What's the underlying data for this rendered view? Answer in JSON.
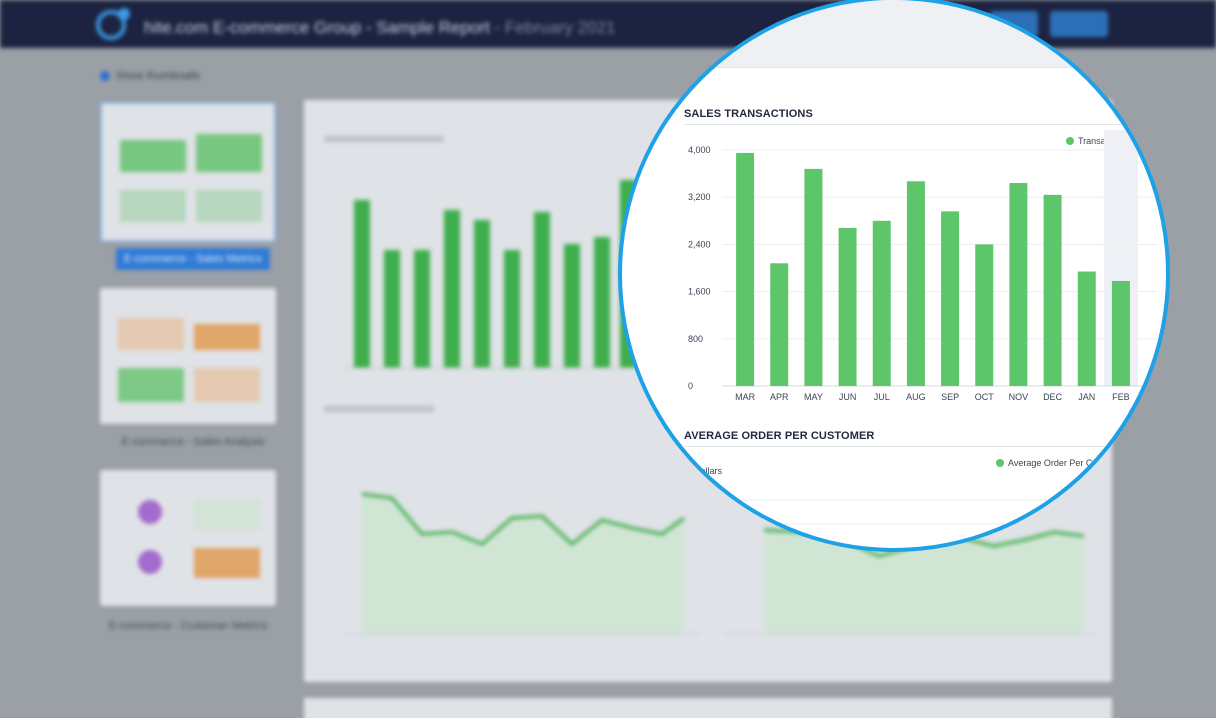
{
  "header": {
    "title": "hite.com E-commerce Group - Sample Report",
    "title_month": "- February 2021",
    "button_a_label": "",
    "button_b_label": ""
  },
  "sidebar": {
    "show_thumbnails_label": "Show thumbnails",
    "items": [
      {
        "label": "E-commerce - Sales Metrics",
        "selected": true
      },
      {
        "label": "E-commerce - Sales Analysis",
        "selected": false
      },
      {
        "label": "E-commerce - Customer Metrics",
        "selected": false
      }
    ]
  },
  "colors": {
    "bar_green": "#5ec66a",
    "header_navy": "#1c2340",
    "magnifier_border": "#1ea1e6",
    "accent_blue": "#2f7ad6"
  },
  "magnifier": {
    "sales_transactions": {
      "title": "SALES TRANSACTIONS",
      "legend": "Transactions"
    },
    "average_order": {
      "title": "AVERAGE ORDER PER CUSTOMER",
      "legend": "Average Order Per C",
      "unit": "Dollars"
    }
  },
  "chart_data": {
    "type": "bar",
    "title": "SALES TRANSACTIONS",
    "categories": [
      "MAR",
      "APR",
      "MAY",
      "JUN",
      "JUL",
      "AUG",
      "SEP",
      "OCT",
      "NOV",
      "DEC",
      "JAN",
      "FEB"
    ],
    "series": [
      {
        "name": "Transactions",
        "values": [
          3950,
          2080,
          3680,
          2680,
          2800,
          3470,
          2960,
          2400,
          3440,
          3240,
          1940,
          1780
        ]
      }
    ],
    "y_ticks": [
      "0",
      "800",
      "1,600",
      "2,400",
      "3,200",
      "4,000"
    ],
    "ylim": [
      0,
      4000
    ],
    "grid": true,
    "legend_position": "top-right",
    "highlight_last_category": true
  }
}
